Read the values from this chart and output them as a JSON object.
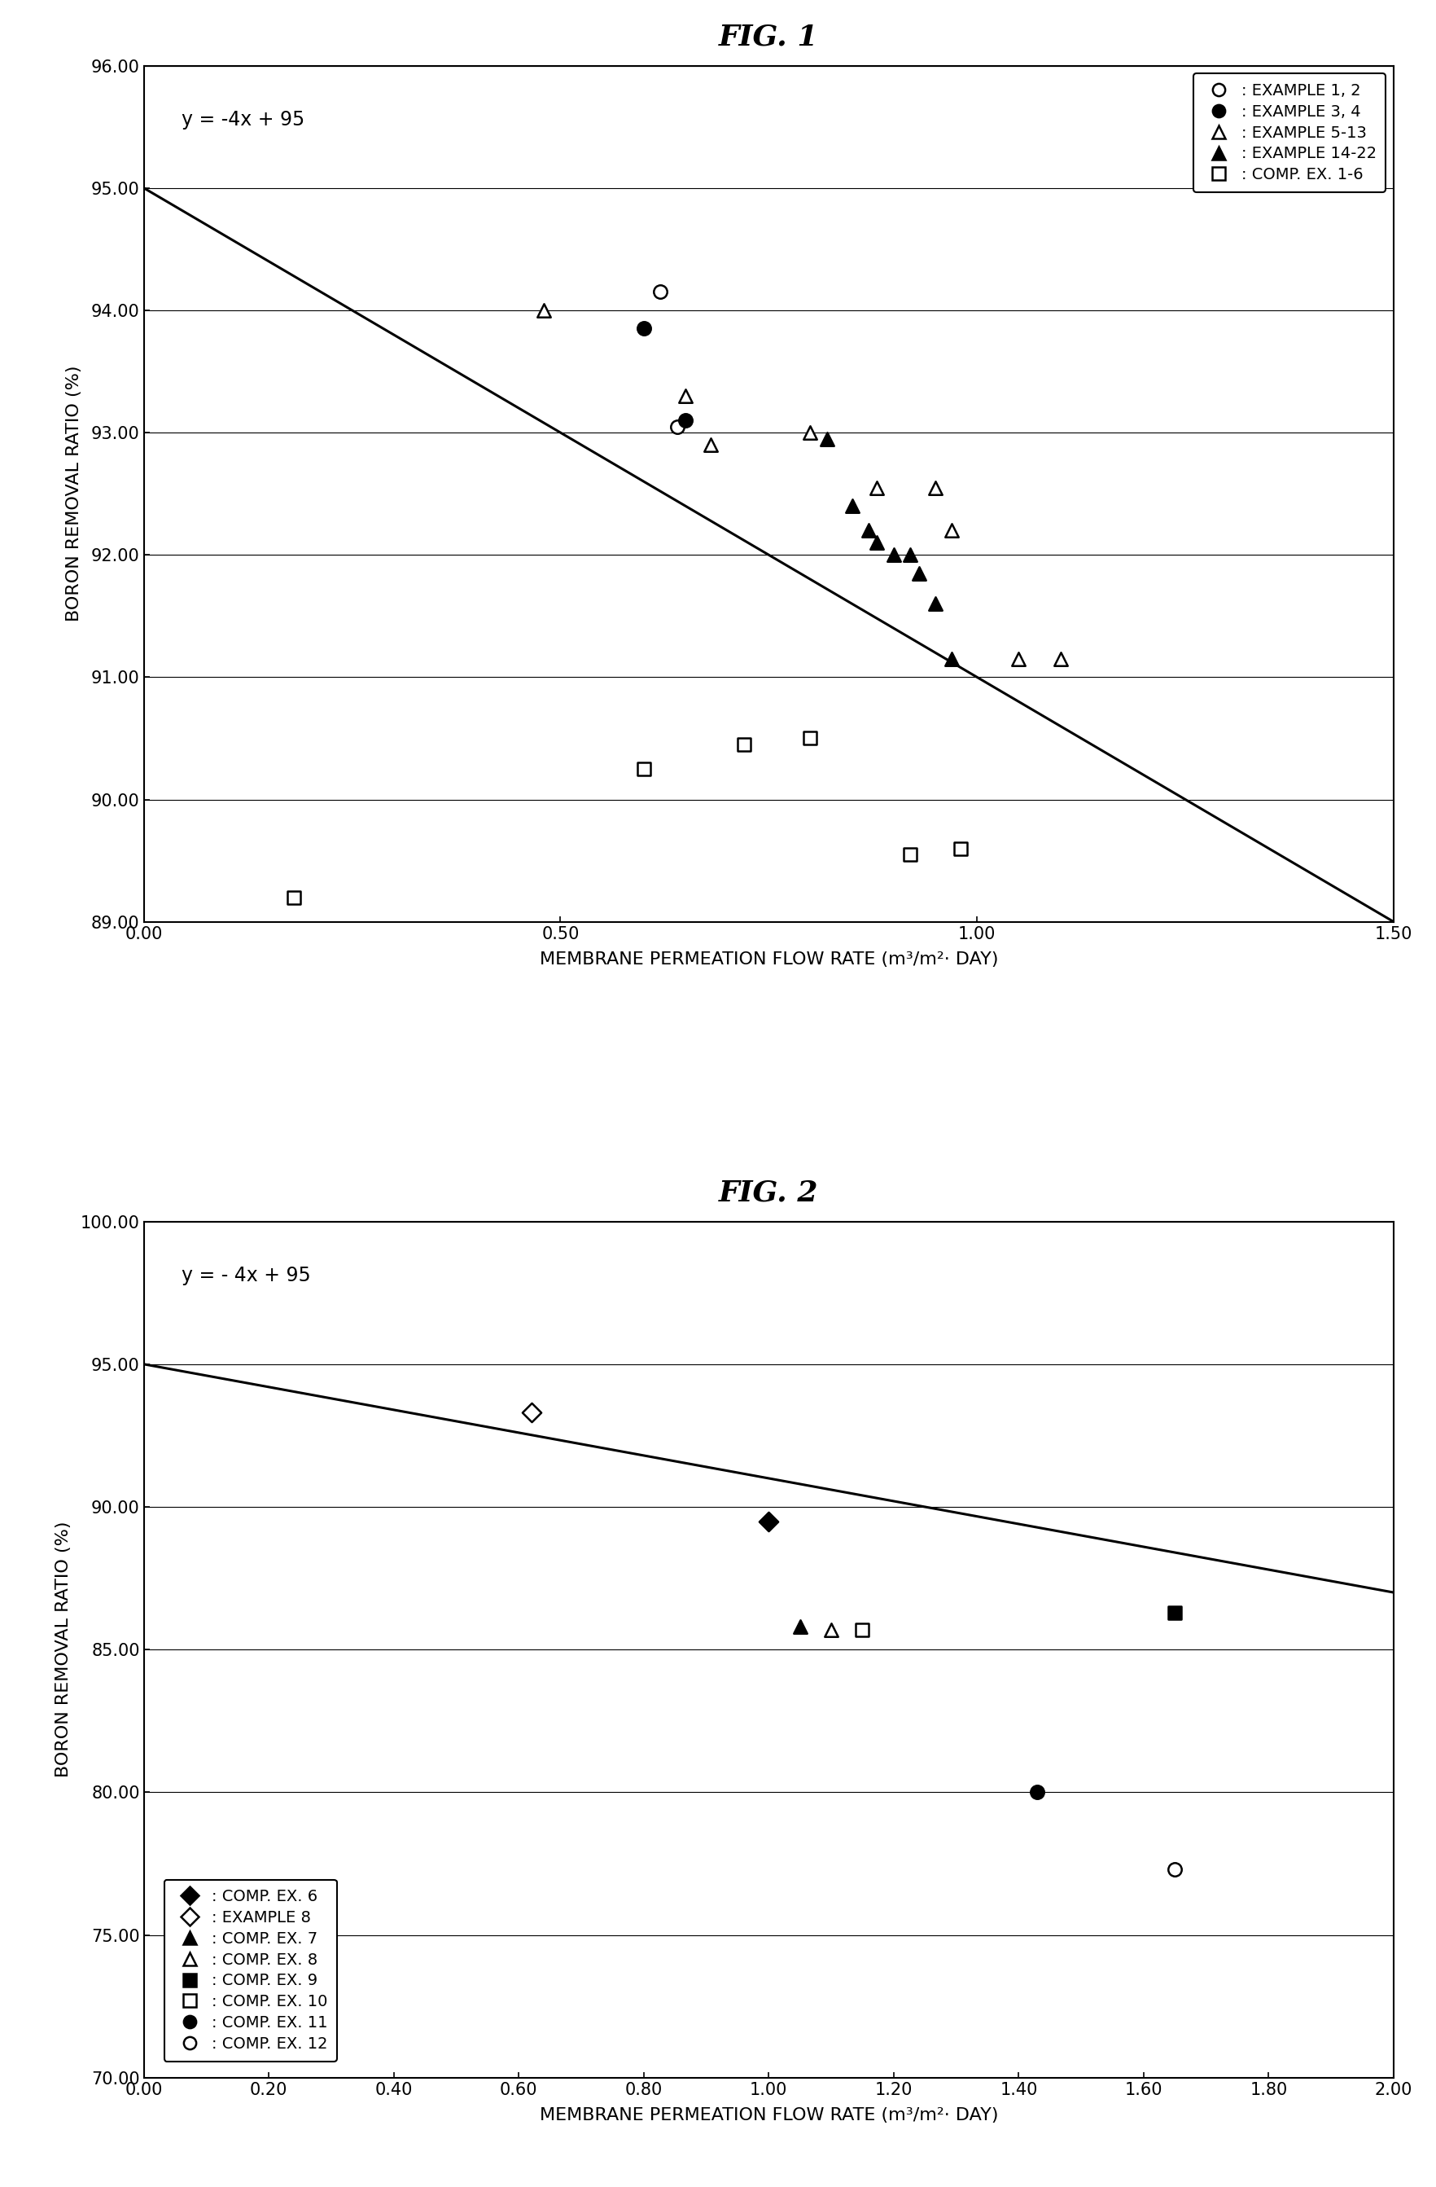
{
  "fig1": {
    "title": "FIG. 1",
    "xlabel": "MEMBRANE PERMEATION FLOW RATE (m³/m²· DAY)",
    "ylabel": "BORON REMOVAL RATIO (%)",
    "xlim": [
      0.0,
      1.5
    ],
    "ylim": [
      89.0,
      96.0
    ],
    "xticks": [
      0.0,
      0.5,
      1.0,
      1.5
    ],
    "yticks": [
      89.0,
      90.0,
      91.0,
      92.0,
      93.0,
      94.0,
      95.0,
      96.0
    ],
    "line_equation": "y = -4x + 95",
    "line_x": [
      0.0,
      1.5
    ],
    "line_y": [
      95.0,
      89.0
    ],
    "series": [
      {
        "label": ": EXAMPLE 1, 2",
        "marker": "o",
        "filled": false,
        "points": [
          [
            0.62,
            94.15
          ],
          [
            0.64,
            93.05
          ]
        ]
      },
      {
        "label": ": EXAMPLE 3, 4",
        "marker": "o",
        "filled": true,
        "points": [
          [
            0.6,
            93.85
          ],
          [
            0.65,
            93.1
          ]
        ]
      },
      {
        "label": ": EXAMPLE 5-13",
        "marker": "^",
        "filled": false,
        "points": [
          [
            0.48,
            94.0
          ],
          [
            0.65,
            93.3
          ],
          [
            0.68,
            92.9
          ],
          [
            0.8,
            93.0
          ],
          [
            0.88,
            92.55
          ],
          [
            0.95,
            92.55
          ],
          [
            0.97,
            92.2
          ],
          [
            1.05,
            91.15
          ],
          [
            1.1,
            91.15
          ]
        ]
      },
      {
        "label": ": EXAMPLE 14-22",
        "marker": "^",
        "filled": true,
        "points": [
          [
            0.82,
            92.95
          ],
          [
            0.85,
            92.4
          ],
          [
            0.87,
            92.2
          ],
          [
            0.88,
            92.1
          ],
          [
            0.9,
            92.0
          ],
          [
            0.92,
            92.0
          ],
          [
            0.93,
            91.85
          ],
          [
            0.95,
            91.6
          ],
          [
            0.97,
            91.15
          ]
        ]
      },
      {
        "label": ": COMP. EX. 1-6",
        "marker": "s",
        "filled": false,
        "points": [
          [
            0.18,
            89.2
          ],
          [
            0.6,
            90.25
          ],
          [
            0.72,
            90.45
          ],
          [
            0.8,
            90.5
          ],
          [
            0.92,
            89.55
          ],
          [
            0.98,
            89.6
          ]
        ]
      }
    ]
  },
  "fig2": {
    "title": "FIG. 2",
    "xlabel": "MEMBRANE PERMEATION FLOW RATE (m³/m²· DAY)",
    "ylabel": "BORON REMOVAL RATIO (%)",
    "xlim": [
      0.0,
      2.0
    ],
    "ylim": [
      70.0,
      100.0
    ],
    "xticks": [
      0.0,
      0.2,
      0.4,
      0.6,
      0.8,
      1.0,
      1.2,
      1.4,
      1.6,
      1.8,
      2.0
    ],
    "yticks": [
      70.0,
      75.0,
      80.0,
      85.0,
      90.0,
      95.0,
      100.0
    ],
    "line_equation": "y = - 4x + 95",
    "line_x": [
      0.0,
      2.0
    ],
    "line_y": [
      95.0,
      87.0
    ],
    "series": [
      {
        "label": ": COMP. EX. 6",
        "marker": "D",
        "filled": true,
        "points": [
          [
            1.0,
            89.5
          ]
        ]
      },
      {
        "label": ": EXAMPLE 8",
        "marker": "D",
        "filled": false,
        "points": [
          [
            0.62,
            93.3
          ]
        ]
      },
      {
        "label": ": COMP. EX. 7",
        "marker": "^",
        "filled": true,
        "points": [
          [
            1.05,
            85.8
          ]
        ]
      },
      {
        "label": ": COMP. EX. 8",
        "marker": "^",
        "filled": false,
        "points": [
          [
            1.1,
            85.7
          ]
        ]
      },
      {
        "label": ": COMP. EX. 9",
        "marker": "s",
        "filled": true,
        "points": [
          [
            1.65,
            86.3
          ]
        ]
      },
      {
        "label": ": COMP. EX. 10",
        "marker": "s",
        "filled": false,
        "points": [
          [
            1.15,
            85.7
          ]
        ]
      },
      {
        "label": ": COMP. EX. 11",
        "marker": "o",
        "filled": true,
        "points": [
          [
            1.43,
            80.0
          ]
        ]
      },
      {
        "label": ": COMP. EX. 12",
        "marker": "o",
        "filled": false,
        "points": [
          [
            1.65,
            77.3
          ]
        ]
      }
    ]
  }
}
